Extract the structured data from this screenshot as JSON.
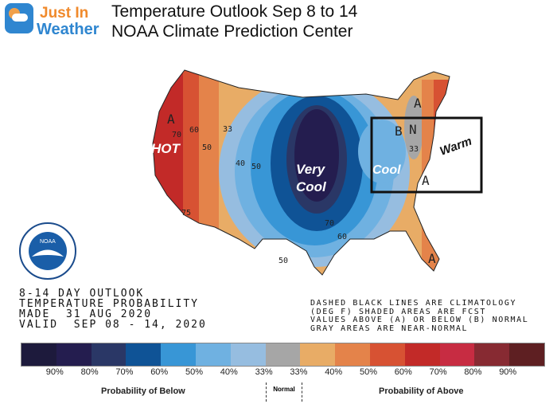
{
  "logo": {
    "line1": "Just In",
    "line2": "Weather"
  },
  "title": {
    "line1": "Temperature Outlook Sep 8 to 14",
    "line2": "NOAA Climate Prediction Center"
  },
  "map_labels": {
    "hot": "HOT",
    "very_cool_1": "Very",
    "very_cool_2": "Cool",
    "cool": "Cool",
    "warm": "Warm"
  },
  "markers": [
    "A",
    "A",
    "A",
    "A",
    "B",
    "N"
  ],
  "contours": [
    "70",
    "60",
    "50",
    "33",
    "40",
    "50",
    "75",
    "70",
    "60",
    "50",
    "33"
  ],
  "noaa_logo": "NOAA",
  "info_left": [
    "8-14 DAY OUTLOOK",
    "TEMPERATURE PROBABILITY",
    "MADE  31 AUG 2020",
    "VALID  SEP 08 - 14, 2020"
  ],
  "info_right": [
    "DASHED BLACK LINES ARE CLIMATOLOGY",
    "(DEG F) SHADED AREAS ARE FCST",
    "VALUES ABOVE (A) OR BELOW (B) NORMAL",
    "GRAY AREAS ARE NEAR-NORMAL"
  ],
  "legend": {
    "colors": [
      "#1d1a3c",
      "#241d4f",
      "#2a3766",
      "#0f5396",
      "#3896d6",
      "#6fb1e1",
      "#96bde0",
      "#a6a6a6",
      "#e8ac66",
      "#e4834a",
      "#d75233",
      "#c22a28",
      "#c72c42",
      "#872a32",
      "#5e1f22"
    ],
    "below_labels": [
      "90%",
      "80%",
      "70%",
      "60%",
      "50%",
      "40%",
      "33%"
    ],
    "above_labels": [
      "33%",
      "40%",
      "50%",
      "60%",
      "70%",
      "80%",
      "90%"
    ],
    "below_caption": "Probability of Below",
    "normal_caption": "Normal",
    "above_caption": "Probability of Above"
  }
}
